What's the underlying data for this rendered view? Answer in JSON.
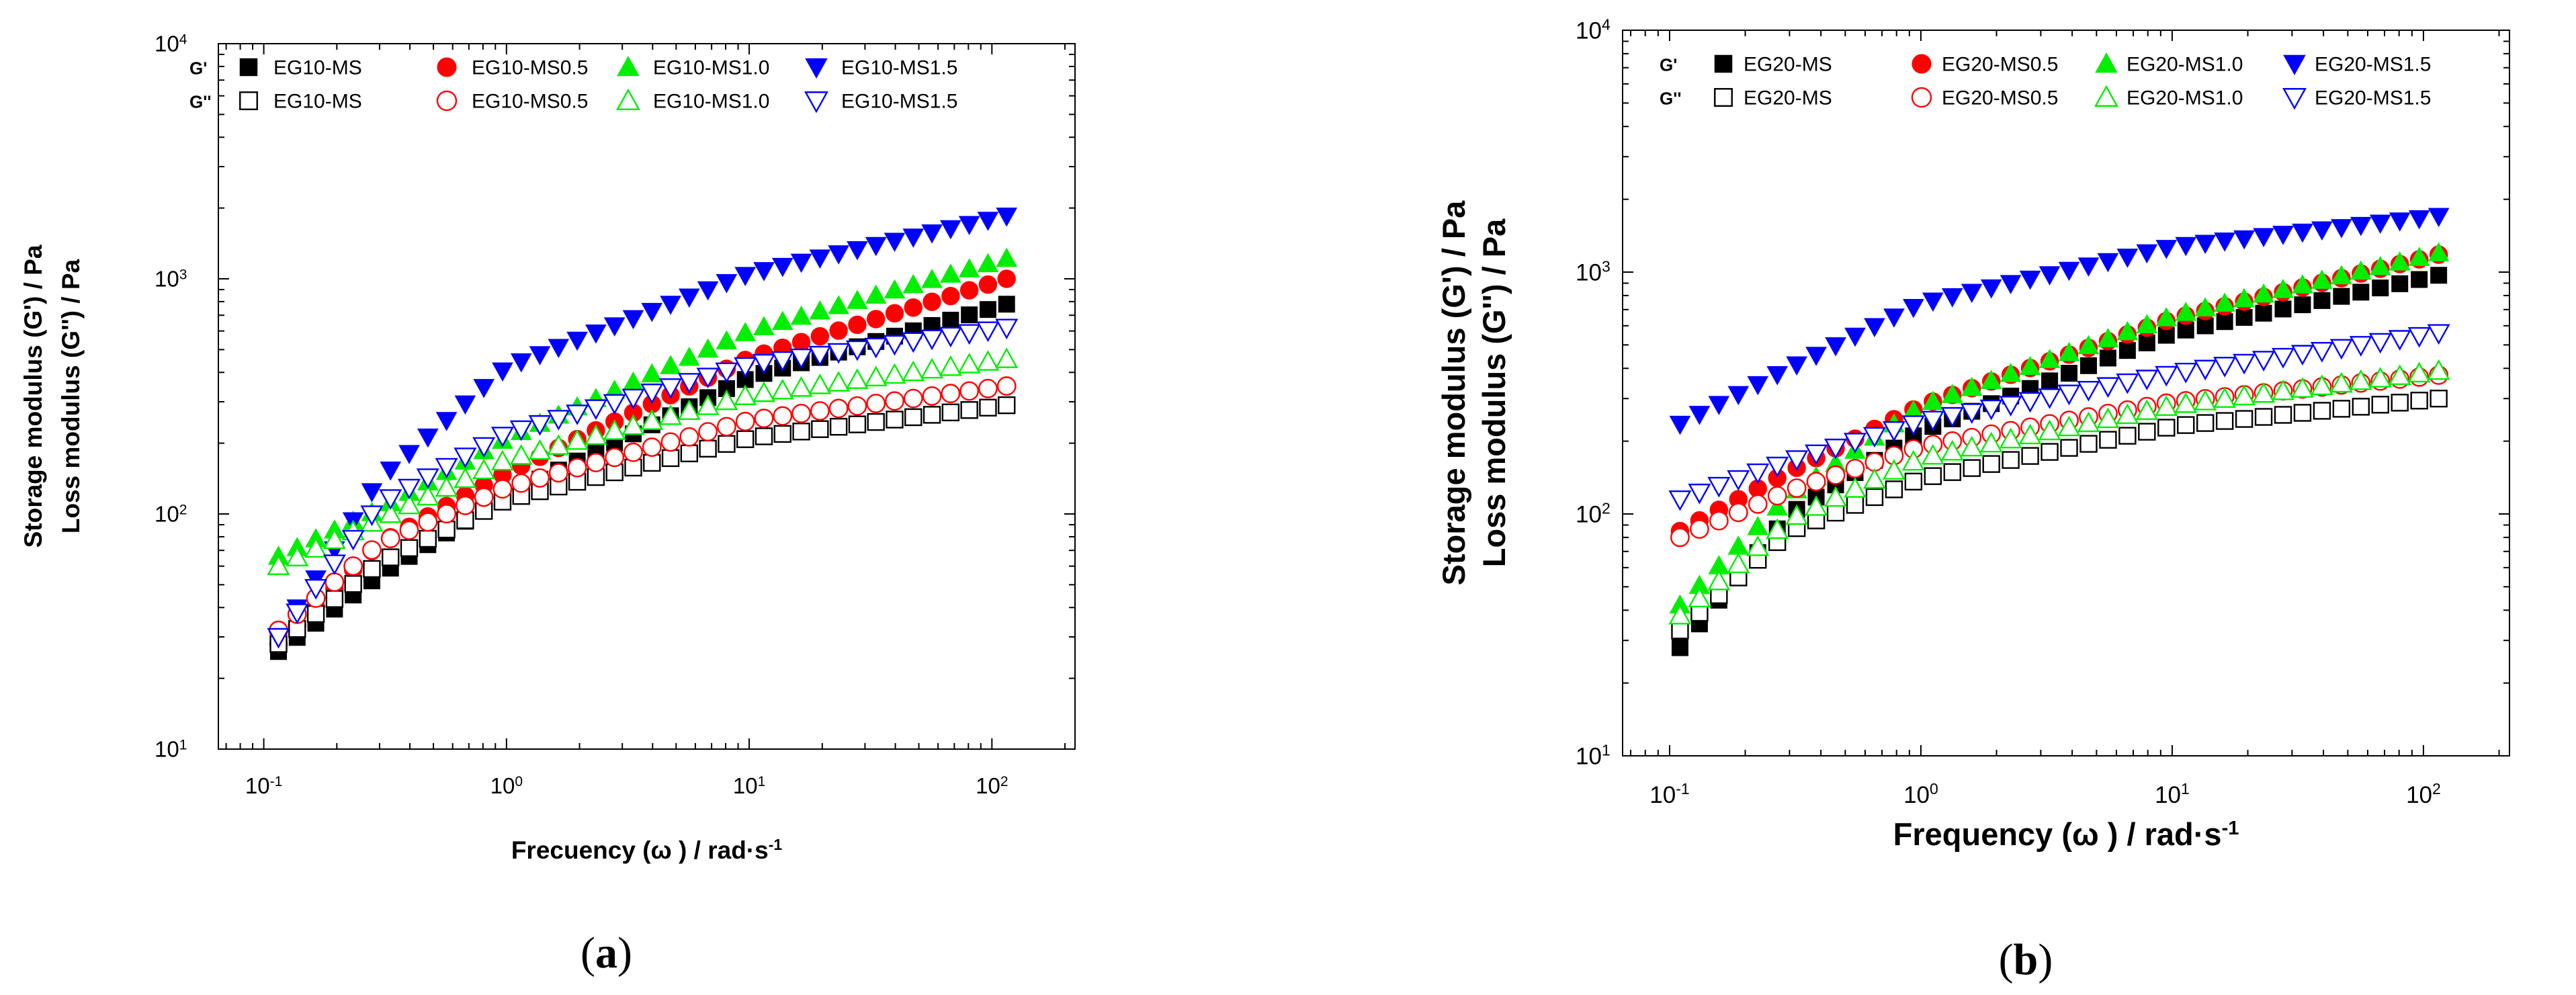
{
  "chart_data": [
    {
      "panel": "a",
      "type": "scatter",
      "caption": "(a)",
      "title": "",
      "xlabel": "Frecuency (ω ) / rad·s",
      "xlabel_sup": "-1",
      "ylabel_line1": "Storage modulus (G') / Pa",
      "ylabel_line2": "Loss modulus (G'') / Pa",
      "xscale": "log",
      "yscale": "log",
      "xlim": [
        0.065,
        220
      ],
      "ylim": [
        10,
        10000
      ],
      "xticks": [
        {
          "base": "10",
          "exp": "-1",
          "v": 0.1
        },
        {
          "base": "10",
          "exp": "0",
          "v": 1
        },
        {
          "base": "10",
          "exp": "1",
          "v": 10
        },
        {
          "base": "10",
          "exp": "2",
          "v": 100
        }
      ],
      "yticks": [
        {
          "base": "10",
          "exp": "1",
          "v": 10
        },
        {
          "base": "10",
          "exp": "2",
          "v": 100
        },
        {
          "base": "10",
          "exp": "3",
          "v": 1000
        },
        {
          "base": "10",
          "exp": "4",
          "v": 10000
        }
      ],
      "legend": {
        "position": "top",
        "row1_label": "G'",
        "row2_label": "G''"
      },
      "x_range": [
        0.115,
        115
      ],
      "n_points": 40,
      "series": [
        {
          "name": "EG10-MS",
          "modulus": "G'",
          "marker": "square",
          "filled": true,
          "color": "#000000",
          "anchors": [
            [
              0.115,
              26
            ],
            [
              0.3,
              55
            ],
            [
              1,
              120
            ],
            [
              10,
              380
            ],
            [
              115,
              780
            ]
          ]
        },
        {
          "name": "EG10-MS0.5",
          "modulus": "G'",
          "marker": "circle",
          "filled": true,
          "color": "#ff0000",
          "anchors": [
            [
              0.115,
              28
            ],
            [
              0.3,
              75
            ],
            [
              1,
              150
            ],
            [
              10,
              460
            ],
            [
              115,
              1000
            ]
          ]
        },
        {
          "name": "EG10-MS1.0",
          "modulus": "G'",
          "marker": "triangle-up",
          "filled": true,
          "color": "#00ee00",
          "anchors": [
            [
              0.115,
              66
            ],
            [
              0.3,
              105
            ],
            [
              1,
              210
            ],
            [
              10,
              600
            ],
            [
              115,
              1220
            ]
          ]
        },
        {
          "name": "EG10-MS1.5",
          "modulus": "G'",
          "marker": "triangle-down",
          "filled": true,
          "color": "#0000ff",
          "anchors": [
            [
              0.115,
              30
            ],
            [
              0.3,
              140
            ],
            [
              1,
              420
            ],
            [
              10,
              1050
            ],
            [
              115,
              1850
            ]
          ]
        },
        {
          "name": "EG10-MS",
          "modulus": "G''",
          "marker": "square",
          "filled": false,
          "color": "#000000",
          "anchors": [
            [
              0.115,
              28
            ],
            [
              0.3,
              62
            ],
            [
              1,
              115
            ],
            [
              10,
              210
            ],
            [
              115,
              290
            ]
          ]
        },
        {
          "name": "EG10-MS0.5",
          "modulus": "G''",
          "marker": "circle",
          "filled": false,
          "color": "#ff0000",
          "anchors": [
            [
              0.115,
              32
            ],
            [
              0.3,
              75
            ],
            [
              1,
              130
            ],
            [
              10,
              250
            ],
            [
              115,
              350
            ]
          ]
        },
        {
          "name": "EG10-MS1.0",
          "modulus": "G''",
          "marker": "triangle-up",
          "filled": false,
          "color": "#00ee00",
          "anchors": [
            [
              0.115,
              60
            ],
            [
              0.3,
              95
            ],
            [
              1,
              170
            ],
            [
              10,
              320
            ],
            [
              115,
              455
            ]
          ]
        },
        {
          "name": "EG10-MS1.5",
          "modulus": "G''",
          "marker": "triangle-down",
          "filled": false,
          "color": "#0000ff",
          "anchors": [
            [
              0.115,
              30
            ],
            [
              0.3,
              110
            ],
            [
              1,
              220
            ],
            [
              10,
              430
            ],
            [
              115,
              620
            ]
          ]
        }
      ]
    },
    {
      "panel": "b",
      "type": "scatter",
      "caption": "(b)",
      "title": "",
      "xlabel": "Frequency (ω ) / rad·s",
      "xlabel_sup": "-1",
      "ylabel_line1": "Storage modulus (G') / Pa",
      "ylabel_line2": "Loss modulus (G'') / Pa",
      "xscale": "log",
      "yscale": "log",
      "xlim": [
        0.065,
        220
      ],
      "ylim": [
        10,
        10000
      ],
      "xticks": [
        {
          "base": "10",
          "exp": "-1",
          "v": 0.1
        },
        {
          "base": "10",
          "exp": "0",
          "v": 1
        },
        {
          "base": "10",
          "exp": "1",
          "v": 10
        },
        {
          "base": "10",
          "exp": "2",
          "v": 100
        }
      ],
      "yticks": [
        {
          "base": "10",
          "exp": "1",
          "v": 10
        },
        {
          "base": "10",
          "exp": "2",
          "v": 100
        },
        {
          "base": "10",
          "exp": "3",
          "v": 1000
        },
        {
          "base": "10",
          "exp": "4",
          "v": 10000
        }
      ],
      "legend": {
        "position": "top",
        "row1_label": "G'",
        "row2_label": "G''"
      },
      "x_range": [
        0.11,
        115
      ],
      "n_points": 40,
      "series": [
        {
          "name": "EG20-MS",
          "modulus": "G'",
          "marker": "square",
          "filled": true,
          "color": "#000000",
          "anchors": [
            [
              0.11,
              28
            ],
            [
              0.3,
              100
            ],
            [
              1,
              220
            ],
            [
              10,
              560
            ],
            [
              115,
              970
            ]
          ]
        },
        {
          "name": "EG20-MS0.5",
          "modulus": "G'",
          "marker": "circle",
          "filled": true,
          "color": "#ff0000",
          "anchors": [
            [
              0.11,
              85
            ],
            [
              0.3,
              150
            ],
            [
              1,
              280
            ],
            [
              10,
              640
            ],
            [
              115,
              1180
            ]
          ]
        },
        {
          "name": "EG20-MS1.0",
          "modulus": "G'",
          "marker": "triangle-up",
          "filled": true,
          "color": "#00ee00",
          "anchors": [
            [
              0.11,
              42
            ],
            [
              0.3,
              120
            ],
            [
              1,
              280
            ],
            [
              10,
              660
            ],
            [
              115,
              1200
            ]
          ]
        },
        {
          "name": "EG20-MS1.5",
          "modulus": "G'",
          "marker": "triangle-down",
          "filled": true,
          "color": "#0000ff",
          "anchors": [
            [
              0.11,
              235
            ],
            [
              0.3,
              400
            ],
            [
              1,
              740
            ],
            [
              10,
              1270
            ],
            [
              115,
              1700
            ]
          ]
        },
        {
          "name": "EG20-MS",
          "modulus": "G''",
          "marker": "square",
          "filled": false,
          "color": "#000000",
          "anchors": [
            [
              0.11,
              33
            ],
            [
              0.3,
              85
            ],
            [
              1,
              140
            ],
            [
              10,
              230
            ],
            [
              115,
              300
            ]
          ]
        },
        {
          "name": "EG20-MS0.5",
          "modulus": "G''",
          "marker": "circle",
          "filled": false,
          "color": "#ff0000",
          "anchors": [
            [
              0.11,
              80
            ],
            [
              0.3,
              125
            ],
            [
              1,
              190
            ],
            [
              10,
              290
            ],
            [
              115,
              375
            ]
          ]
        },
        {
          "name": "EG20-MS1.0",
          "modulus": "G''",
          "marker": "triangle-up",
          "filled": false,
          "color": "#00ee00",
          "anchors": [
            [
              0.11,
              38
            ],
            [
              0.3,
              95
            ],
            [
              1,
              170
            ],
            [
              10,
              280
            ],
            [
              115,
              390
            ]
          ]
        },
        {
          "name": "EG20-MS1.5",
          "modulus": "G''",
          "marker": "triangle-down",
          "filled": false,
          "color": "#0000ff",
          "anchors": [
            [
              0.11,
              115
            ],
            [
              0.3,
              165
            ],
            [
              1,
              240
            ],
            [
              10,
              380
            ],
            [
              115,
              560
            ]
          ]
        }
      ]
    }
  ]
}
